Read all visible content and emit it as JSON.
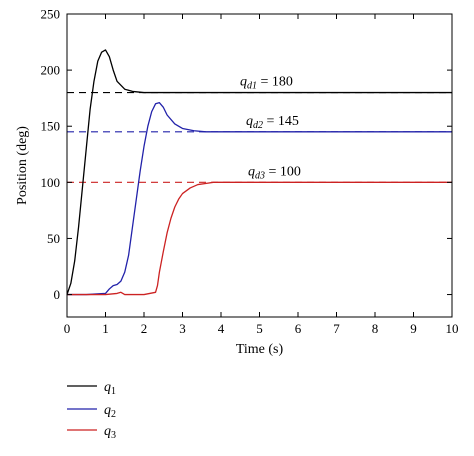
{
  "chart_data": {
    "type": "line",
    "xlabel": "Time (s)",
    "ylabel": "Position (deg)",
    "xlim": [
      0,
      10
    ],
    "ylim": [
      -20,
      250
    ],
    "xticks": [
      0,
      1,
      2,
      3,
      4,
      5,
      6,
      7,
      8,
      9,
      10
    ],
    "yticks": [
      0,
      50,
      100,
      150,
      200,
      250
    ],
    "grid": false,
    "legend_position": "bottom-left, below plot",
    "series": [
      {
        "name": "q1",
        "name_base": "q",
        "name_sub": "1",
        "color": "#000000",
        "x": [
          0,
          0.1,
          0.2,
          0.3,
          0.4,
          0.5,
          0.6,
          0.7,
          0.8,
          0.9,
          1.0,
          1.1,
          1.2,
          1.3,
          1.5,
          1.7,
          2.0,
          2.5,
          3.0,
          10
        ],
        "y": [
          0,
          10,
          30,
          60,
          95,
          130,
          165,
          190,
          208,
          216,
          218,
          212,
          200,
          190,
          183,
          181,
          180,
          180,
          180,
          180
        ]
      },
      {
        "name": "q2",
        "name_base": "q",
        "name_sub": "2",
        "color": "#2222aa",
        "x": [
          0,
          0.5,
          1.0,
          1.1,
          1.2,
          1.3,
          1.4,
          1.5,
          1.6,
          1.7,
          1.8,
          1.9,
          2.0,
          2.1,
          2.2,
          2.3,
          2.4,
          2.5,
          2.6,
          2.8,
          3.0,
          3.3,
          3.6,
          4.0,
          10
        ],
        "y": [
          0,
          0,
          1,
          5,
          8,
          9,
          12,
          20,
          35,
          60,
          85,
          110,
          132,
          150,
          163,
          170,
          171,
          167,
          160,
          152,
          148,
          146,
          145,
          145,
          145
        ]
      },
      {
        "name": "q3",
        "name_base": "q",
        "name_sub": "3",
        "color": "#cc2222",
        "x": [
          0,
          1.0,
          1.3,
          1.4,
          1.5,
          2.0,
          2.3,
          2.35,
          2.4,
          2.5,
          2.6,
          2.7,
          2.8,
          2.9,
          3.0,
          3.2,
          3.4,
          3.6,
          3.8,
          4.0,
          10
        ],
        "y": [
          0,
          0,
          1,
          2,
          0,
          0,
          2,
          8,
          20,
          38,
          55,
          68,
          78,
          85,
          90,
          95,
          98,
          99,
          100,
          100,
          100
        ]
      }
    ],
    "references": [
      {
        "value": 180,
        "color": "#000000",
        "label_base": "q",
        "label_sub": "d1",
        "label_eq": " = 180"
      },
      {
        "value": 145,
        "color": "#2222aa",
        "label_base": "q",
        "label_sub": "d2",
        "label_eq": " = 145"
      },
      {
        "value": 100,
        "color": "#cc2222",
        "label_base": "q",
        "label_sub": "d3",
        "label_eq": " = 100"
      }
    ]
  }
}
